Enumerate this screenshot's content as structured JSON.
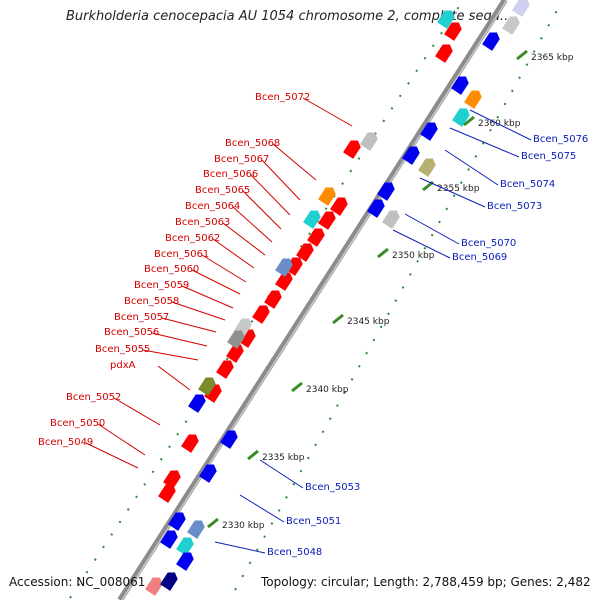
{
  "title": "Burkholderia cenocepacia AU 1054 chromosome 2, complete sequ...",
  "footer": {
    "accession": "Accession: NC_008061",
    "summary": "Topology: circular; Length: 2,788,459 bp; Genes: 2,482"
  },
  "colors": {
    "forward_gene": "#ff0000",
    "reverse_gene": "#0000ee",
    "left_label": "#d40000",
    "right_label": "#0b20b8",
    "backbone": "#8c8c8c",
    "tick": "#3a8a2a"
  },
  "ticks": [
    {
      "label": "2365 kbp",
      "pos": 2365
    },
    {
      "label": "2360 kbp",
      "pos": 2360
    },
    {
      "label": "2355 kbp",
      "pos": 2355
    },
    {
      "label": "2350 kbp",
      "pos": 2350
    },
    {
      "label": "2345 kbp",
      "pos": 2345
    },
    {
      "label": "2340 kbp",
      "pos": 2340
    },
    {
      "label": "2335 kbp",
      "pos": 2335
    },
    {
      "label": "2330 kbp",
      "pos": 2330
    }
  ],
  "left_labels": [
    "Bcen_5072",
    "Bcen_5068",
    "Bcen_5067",
    "Bcen_5066",
    "Bcen_5065",
    "Bcen_5064",
    "Bcen_5063",
    "Bcen_5062",
    "Bcen_5061",
    "Bcen_5060",
    "Bcen_5059",
    "Bcen_5058",
    "Bcen_5057",
    "Bcen_5056",
    "Bcen_5055",
    "pdxA",
    "Bcen_5052",
    "Bcen_5050",
    "Bcen_5049"
  ],
  "right_labels": [
    "Bcen_5076",
    "Bcen_5075",
    "Bcen_5074",
    "Bcen_5073",
    "Bcen_5070",
    "Bcen_5069",
    "Bcen_5053",
    "Bcen_5051",
    "Bcen_5048"
  ]
}
